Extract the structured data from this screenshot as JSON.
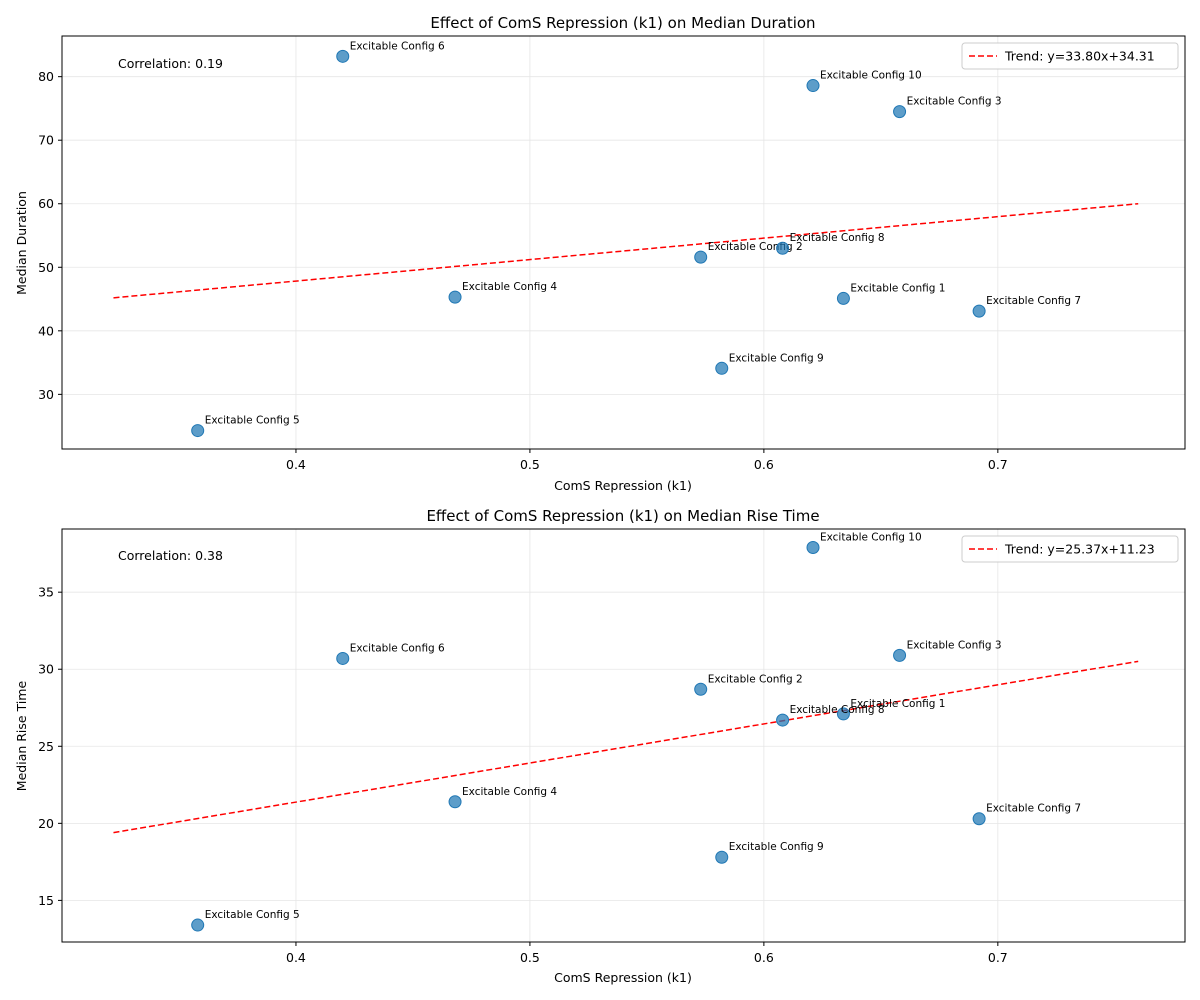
{
  "colors": {
    "point": "#1f77b4",
    "trend": "#ff0000",
    "grid": "#e6e6e6",
    "axis": "#000000"
  },
  "chart_data": [
    {
      "type": "scatter",
      "title": "Effect of ComS Repression (k1) on Median Duration",
      "xlabel": "ComS Repression (k1)",
      "ylabel": "Median Duration",
      "xlim": [
        0.3,
        0.78
      ],
      "ylim": [
        21.4,
        86.4
      ],
      "xticks": [
        0.4,
        0.5,
        0.6,
        0.7
      ],
      "xtick_labels": [
        "0.4",
        "0.5",
        "0.6",
        "0.7"
      ],
      "yticks": [
        30,
        40,
        50,
        60,
        70,
        80
      ],
      "ytick_labels": [
        "30",
        "40",
        "50",
        "60",
        "70",
        "80"
      ],
      "grid": true,
      "legend_position": "top-right",
      "annotation": "Correlation: 0.19",
      "points": [
        {
          "label": "Excitable Config 1",
          "x": 0.634,
          "y": 45.1
        },
        {
          "label": "Excitable Config 2",
          "x": 0.573,
          "y": 51.6
        },
        {
          "label": "Excitable Config 3",
          "x": 0.658,
          "y": 74.5
        },
        {
          "label": "Excitable Config 4",
          "x": 0.468,
          "y": 45.3
        },
        {
          "label": "Excitable Config 5",
          "x": 0.358,
          "y": 24.3
        },
        {
          "label": "Excitable Config 6",
          "x": 0.42,
          "y": 83.2
        },
        {
          "label": "Excitable Config 7",
          "x": 0.692,
          "y": 43.1
        },
        {
          "label": "Excitable Config 8",
          "x": 0.608,
          "y": 53.0
        },
        {
          "label": "Excitable Config 9",
          "x": 0.582,
          "y": 34.1
        },
        {
          "label": "Excitable Config 10",
          "x": 0.621,
          "y": 78.6
        }
      ],
      "trend": {
        "name": "Trend: y=33.80x+34.31",
        "slope": 33.8,
        "intercept": 34.31,
        "x_range": [
          0.322,
          0.76
        ]
      }
    },
    {
      "type": "scatter",
      "title": "Effect of ComS Repression (k1) on Median Rise Time",
      "xlabel": "ComS Repression (k1)",
      "ylabel": "Median Rise Time",
      "xlim": [
        0.3,
        0.78
      ],
      "ylim": [
        12.3,
        39.1
      ],
      "xticks": [
        0.4,
        0.5,
        0.6,
        0.7
      ],
      "xtick_labels": [
        "0.4",
        "0.5",
        "0.6",
        "0.7"
      ],
      "yticks": [
        15,
        20,
        25,
        30,
        35
      ],
      "ytick_labels": [
        "15",
        "20",
        "25",
        "30",
        "35"
      ],
      "grid": true,
      "legend_position": "top-right",
      "annotation": "Correlation: 0.38",
      "points": [
        {
          "label": "Excitable Config 1",
          "x": 0.634,
          "y": 27.1
        },
        {
          "label": "Excitable Config 2",
          "x": 0.573,
          "y": 28.7
        },
        {
          "label": "Excitable Config 3",
          "x": 0.658,
          "y": 30.9
        },
        {
          "label": "Excitable Config 4",
          "x": 0.468,
          "y": 21.4
        },
        {
          "label": "Excitable Config 5",
          "x": 0.358,
          "y": 13.4
        },
        {
          "label": "Excitable Config 6",
          "x": 0.42,
          "y": 30.7
        },
        {
          "label": "Excitable Config 7",
          "x": 0.692,
          "y": 20.3
        },
        {
          "label": "Excitable Config 8",
          "x": 0.608,
          "y": 26.7
        },
        {
          "label": "Excitable Config 9",
          "x": 0.582,
          "y": 17.8
        },
        {
          "label": "Excitable Config 10",
          "x": 0.621,
          "y": 37.9
        }
      ],
      "trend": {
        "name": "Trend: y=25.37x+11.23",
        "slope": 25.37,
        "intercept": 11.23,
        "x_range": [
          0.322,
          0.76
        ]
      }
    }
  ]
}
